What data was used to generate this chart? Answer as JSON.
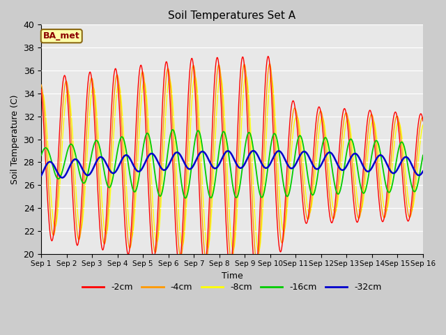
{
  "title": "Soil Temperatures Set A",
  "xlabel": "Time",
  "ylabel": "Soil Temperature (C)",
  "ylim": [
    20,
    40
  ],
  "annotation": "BA_met",
  "series": {
    "-2cm": {
      "color": "#ff0000",
      "lw": 1.0
    },
    "-4cm": {
      "color": "#ff9900",
      "lw": 1.0
    },
    "-8cm": {
      "color": "#ffff00",
      "lw": 1.0
    },
    "-16cm": {
      "color": "#00cc00",
      "lw": 1.3
    },
    "-32cm": {
      "color": "#0000cc",
      "lw": 1.8
    }
  },
  "xtick_labels": [
    "Sep 1",
    "Sep 2",
    "Sep 3",
    "Sep 4",
    "Sep 5",
    "Sep 6",
    "Sep 7",
    "Sep 8",
    "Sep 9",
    "Sep 10",
    "Sep 11",
    "Sep 12",
    "Sep 13",
    "Sep 14",
    "Sep 15",
    "Sep 16"
  ]
}
